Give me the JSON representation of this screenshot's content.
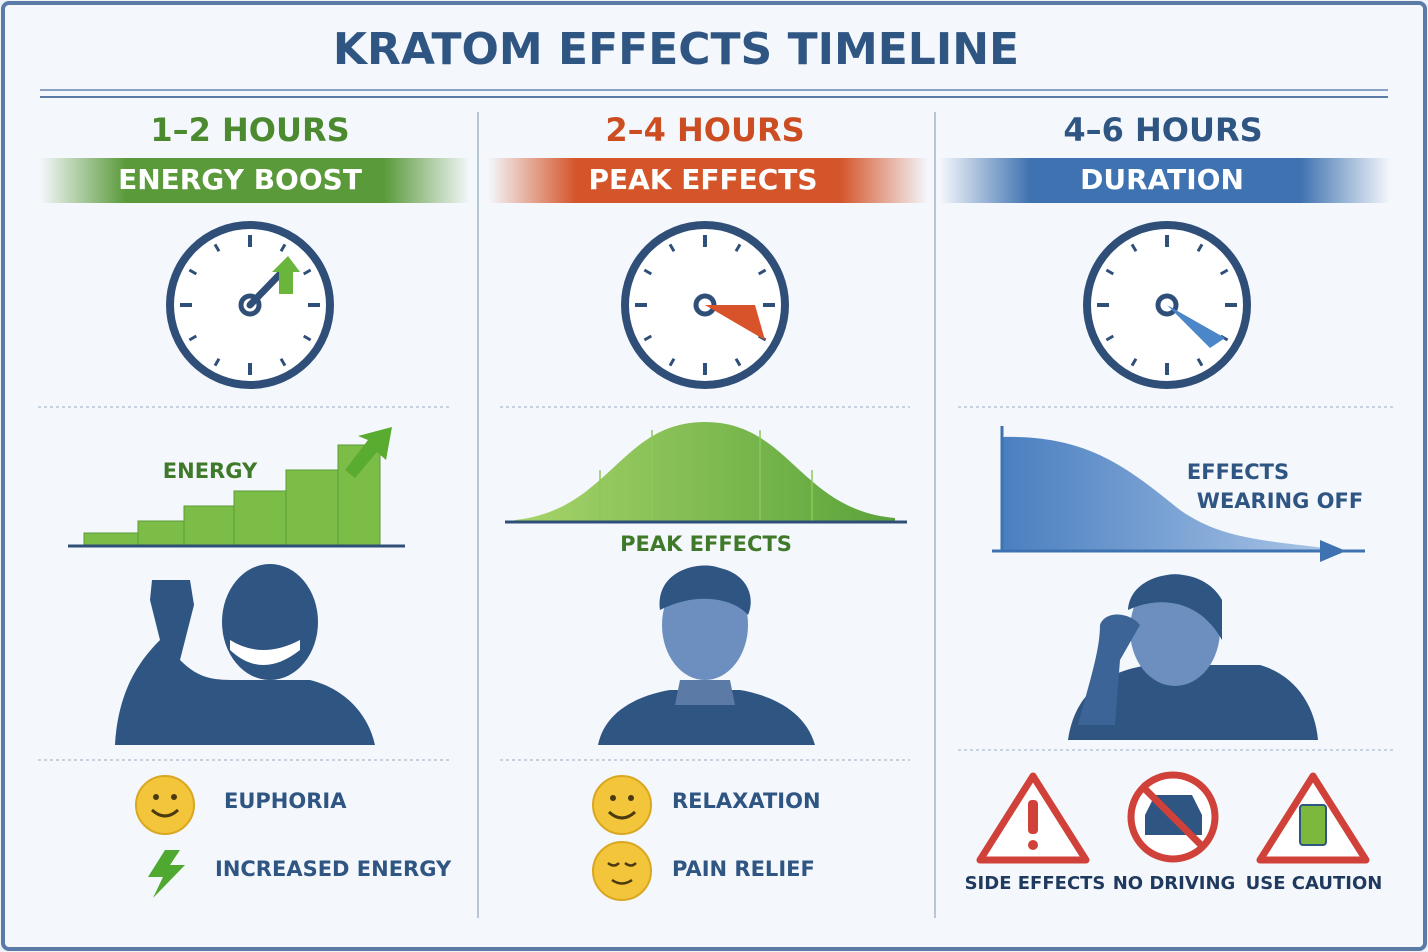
{
  "title": "KRATOM EFFECTS TIMELINE",
  "columns": [
    {
      "time": "1–2 HOURS",
      "phase": "ENERGY BOOST",
      "chart_label": "ENERGY",
      "effects": [
        "EUPHORIA",
        "INCREASED ENERGY"
      ]
    },
    {
      "time": "2–4 HOURS",
      "phase": "PEAK EFFECTS",
      "chart_label": "PEAK EFFECTS",
      "effects": [
        "RELAXATION",
        "PAIN RELIEF"
      ]
    },
    {
      "time": "4–6 HOURS",
      "phase": "DURATION",
      "chart_label_lines": [
        "EFFECTS",
        "WEARING OFF"
      ],
      "warnings": [
        "SIDE EFFECTS",
        "NO DRIVING",
        "USE CAUTION"
      ]
    }
  ]
}
